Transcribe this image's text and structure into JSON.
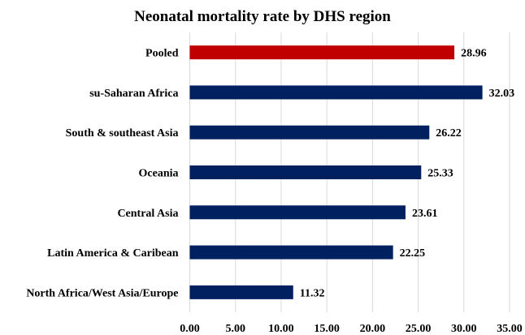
{
  "chart_data": {
    "type": "bar",
    "orientation": "horizontal",
    "title": "Neonatal mortality rate by DHS region",
    "xlabel": "",
    "ylabel": "",
    "categories": [
      "Pooled",
      "su-Saharan Africa",
      "South & southeast Asia",
      "Oceania",
      "Central Asia",
      "Latin America & Caribean",
      "North Africa/West Asia/Europe"
    ],
    "values": [
      28.96,
      32.03,
      26.22,
      25.33,
      23.61,
      22.25,
      11.32
    ],
    "data_labels": [
      "28.96",
      "32.03",
      "26.22",
      "25.33",
      "23.61",
      "22.25",
      "11.32"
    ],
    "bar_colors": [
      "#C00000",
      "#002060",
      "#002060",
      "#002060",
      "#002060",
      "#002060",
      "#002060"
    ],
    "xlim": [
      0,
      35
    ],
    "x_ticks": [
      "0.00",
      "5.00",
      "10.00",
      "15.00",
      "20.00",
      "25.00",
      "30.00",
      "35.00"
    ],
    "grid": "vertical",
    "legend": "none"
  }
}
